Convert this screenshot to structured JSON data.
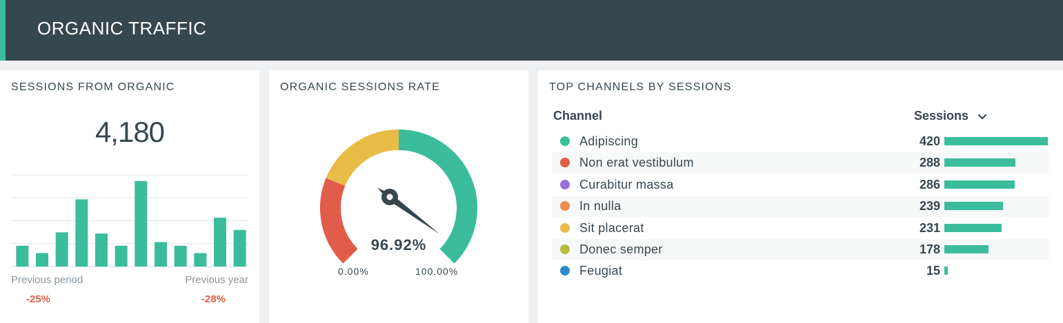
{
  "header": {
    "title": "ORGANIC TRAFFIC"
  },
  "sessions_card": {
    "title": "SESSIONS FROM ORGANIC",
    "value": "4,180",
    "previous_period_label": "Previous period",
    "previous_period_value": "-25%",
    "previous_year_label": "Previous year",
    "previous_year_value": "-28%"
  },
  "rate_card": {
    "title": "ORGANIC SESSIONS RATE",
    "value": "96.92%",
    "min_label": "0.00%",
    "max_label": "100.00%",
    "value_fraction": 0.9692
  },
  "channels_card": {
    "title": "TOP CHANNELS BY SESSIONS",
    "col_channel": "Channel",
    "col_sessions": "Sessions",
    "sort_icon": "chevron-down-icon",
    "rows": [
      {
        "name": "Adipiscing",
        "value": "420",
        "color": "#3bbd9c"
      },
      {
        "name": "Non erat vestibulum",
        "value": "288",
        "color": "#e05d4a"
      },
      {
        "name": "Curabitur massa",
        "value": "286",
        "color": "#9370db"
      },
      {
        "name": "In nulla",
        "value": "239",
        "color": "#ef8c4f"
      },
      {
        "name": "Sit placerat",
        "value": "231",
        "color": "#e9bc48"
      },
      {
        "name": "Donec semper",
        "value": "178",
        "color": "#b5bd3a"
      },
      {
        "name": "Feugiat",
        "value": "15",
        "color": "#2f8bc9"
      }
    ]
  },
  "colors": {
    "header_bg": "#37474f",
    "accent": "#3bbd9c",
    "negative": "#e05d4a",
    "gauge_low": "#e05d4a",
    "gauge_mid": "#e9bc48",
    "gauge_high": "#3bbd9c"
  },
  "chart_data": {
    "type": "bar",
    "values": [
      17,
      11,
      28,
      55,
      27,
      17,
      70,
      20,
      17,
      11,
      40,
      30
    ],
    "title": "",
    "xlabel": "",
    "ylabel": "",
    "ylim": [
      0,
      75
    ],
    "grid": true
  }
}
